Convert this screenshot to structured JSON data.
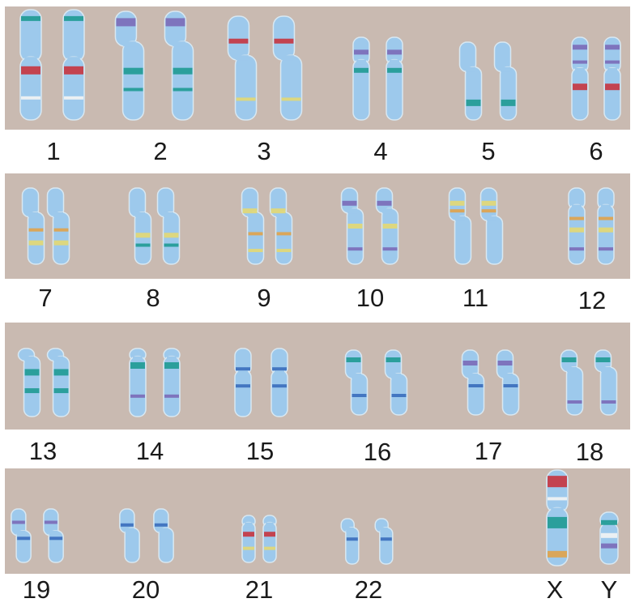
{
  "karyotype": {
    "background_color": "#c9bab1",
    "chromosome_fill": "#9dc9ec",
    "chromosome_outline": "#d8e8f2",
    "band_colors": {
      "teal": "#1f9a94",
      "red": "#c8343f",
      "purple": "#7b6ab8",
      "yellow": "#e4d873",
      "white": "#f4f4f4",
      "orange": "#e1a24a",
      "blue": "#3a6dbd"
    },
    "labels": [
      "1",
      "2",
      "3",
      "4",
      "5",
      "6",
      "7",
      "8",
      "9",
      "10",
      "11",
      "12",
      "13",
      "14",
      "15",
      "16",
      "17",
      "18",
      "19",
      "20",
      "21",
      "22",
      "X",
      "Y"
    ]
  }
}
